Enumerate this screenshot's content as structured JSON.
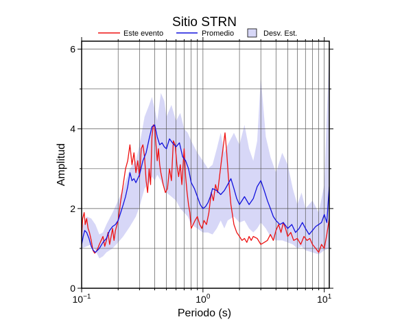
{
  "chart_data": {
    "type": "line",
    "title": "Sitio STRN",
    "xlabel": "Periodo (s)",
    "ylabel": "Amplitud",
    "x_scale": "log",
    "xlim": [
      0.1,
      11
    ],
    "ylim": [
      0,
      6.2
    ],
    "x_ticks": [
      {
        "value": 0.1,
        "base": "10",
        "exp": "−1"
      },
      {
        "value": 1,
        "base": "10",
        "exp": "0"
      },
      {
        "value": 10,
        "base": "10",
        "exp": "1"
      }
    ],
    "y_ticks": [
      0,
      2,
      4,
      6
    ],
    "grid": true,
    "legend_position": "top",
    "legend": [
      {
        "label": "Este evento",
        "kind": "line",
        "color": "#ee1111"
      },
      {
        "label": "Promedio",
        "kind": "line",
        "color": "#1111dd"
      },
      {
        "label": "Desv. Est.",
        "kind": "band",
        "color": "#d7d7f7"
      }
    ],
    "band": {
      "name": "Desv. Est.",
      "color": "#d7d7f7",
      "x": [
        0.1,
        0.11,
        0.12,
        0.13,
        0.14,
        0.15,
        0.16,
        0.18,
        0.2,
        0.22,
        0.25,
        0.28,
        0.3,
        0.33,
        0.36,
        0.38,
        0.4,
        0.42,
        0.45,
        0.48,
        0.5,
        0.55,
        0.6,
        0.65,
        0.7,
        0.75,
        0.8,
        0.9,
        1.0,
        1.1,
        1.2,
        1.3,
        1.4,
        1.5,
        1.6,
        1.8,
        2.0,
        2.2,
        2.4,
        2.6,
        2.8,
        3.0,
        3.3,
        3.6,
        4.0,
        4.5,
        5.0,
        5.5,
        6.0,
        6.5,
        7.0,
        8.0,
        9.0,
        10.0,
        11.0
      ],
      "upper": [
        1.5,
        1.8,
        1.75,
        1.6,
        1.35,
        1.4,
        1.6,
        1.9,
        2.2,
        2.5,
        3.0,
        3.2,
        3.6,
        4.3,
        4.6,
        4.8,
        4.5,
        4.2,
        4.9,
        4.7,
        4.3,
        4.6,
        4.2,
        4.4,
        4.0,
        3.9,
        3.7,
        3.4,
        3.2,
        3.0,
        3.1,
        3.5,
        3.9,
        3.4,
        3.6,
        3.9,
        3.6,
        4.1,
        3.5,
        3.2,
        3.7,
        5.3,
        3.8,
        3.3,
        2.9,
        3.4,
        3.1,
        2.5,
        2.1,
        2.4,
        2.0,
        2.2,
        1.9,
        2.6,
        6.0
      ],
      "lower": [
        1.0,
        1.05,
        1.1,
        0.95,
        0.75,
        0.8,
        0.9,
        1.0,
        1.15,
        1.3,
        1.55,
        1.8,
        2.05,
        2.5,
        2.65,
        2.8,
        2.7,
        2.85,
        2.7,
        2.5,
        2.4,
        2.3,
        2.2,
        2.0,
        1.9,
        1.8,
        1.6,
        1.5,
        1.4,
        1.4,
        1.35,
        1.5,
        1.7,
        1.5,
        1.7,
        1.8,
        1.65,
        1.7,
        1.5,
        1.4,
        1.5,
        1.65,
        1.5,
        1.3,
        1.2,
        1.2,
        1.15,
        1.1,
        1.0,
        1.05,
        0.95,
        0.9,
        0.85,
        0.95,
        1.0
      ]
    },
    "series": [
      {
        "name": "Este evento",
        "color": "#ee1111",
        "x": [
          0.1,
          0.102,
          0.105,
          0.107,
          0.11,
          0.113,
          0.116,
          0.12,
          0.124,
          0.128,
          0.132,
          0.136,
          0.14,
          0.145,
          0.15,
          0.155,
          0.16,
          0.165,
          0.17,
          0.175,
          0.18,
          0.185,
          0.19,
          0.2,
          0.21,
          0.22,
          0.23,
          0.24,
          0.25,
          0.26,
          0.27,
          0.28,
          0.29,
          0.3,
          0.31,
          0.32,
          0.33,
          0.34,
          0.35,
          0.36,
          0.37,
          0.38,
          0.39,
          0.4,
          0.41,
          0.42,
          0.43,
          0.44,
          0.45,
          0.47,
          0.49,
          0.51,
          0.53,
          0.55,
          0.57,
          0.59,
          0.61,
          0.63,
          0.65,
          0.67,
          0.7,
          0.72,
          0.74,
          0.76,
          0.78,
          0.8,
          0.83,
          0.86,
          0.9,
          0.94,
          0.98,
          1.02,
          1.07,
          1.12,
          1.17,
          1.22,
          1.27,
          1.32,
          1.37,
          1.42,
          1.47,
          1.52,
          1.57,
          1.62,
          1.7,
          1.8,
          1.9,
          2.0,
          2.1,
          2.2,
          2.3,
          2.4,
          2.5,
          2.6,
          2.8,
          3.0,
          3.2,
          3.4,
          3.6,
          3.8,
          4.0,
          4.2,
          4.4,
          4.6,
          4.8,
          5.0,
          5.3,
          5.6,
          6.0,
          6.4,
          6.8,
          7.2,
          7.6,
          8.0,
          8.5,
          9.0,
          9.5,
          10.0,
          10.5,
          11.0
        ],
        "values": [
          1.3,
          1.75,
          1.9,
          1.6,
          1.75,
          1.5,
          1.4,
          1.2,
          0.95,
          0.88,
          0.92,
          1.0,
          1.1,
          1.2,
          1.3,
          1.05,
          1.2,
          1.4,
          1.1,
          1.3,
          1.5,
          1.2,
          1.45,
          1.7,
          2.2,
          2.6,
          3.0,
          3.2,
          3.6,
          3.1,
          3.4,
          2.9,
          3.2,
          2.8,
          3.5,
          3.6,
          3.3,
          2.7,
          2.4,
          3.0,
          2.6,
          3.8,
          4.1,
          4.05,
          3.6,
          3.2,
          3.5,
          3.1,
          2.9,
          2.6,
          2.4,
          2.5,
          3.0,
          2.7,
          3.7,
          3.6,
          3.1,
          2.8,
          3.1,
          2.6,
          3.5,
          2.8,
          2.4,
          2.1,
          1.9,
          1.5,
          1.6,
          1.7,
          1.8,
          1.6,
          1.5,
          1.7,
          1.6,
          1.9,
          2.4,
          2.2,
          2.6,
          2.4,
          2.8,
          3.2,
          3.55,
          3.9,
          3.4,
          2.8,
          2.1,
          1.6,
          1.4,
          1.3,
          1.2,
          1.25,
          1.15,
          1.3,
          1.2,
          1.3,
          1.25,
          1.1,
          1.15,
          1.2,
          1.35,
          1.2,
          1.45,
          1.6,
          1.4,
          1.65,
          1.5,
          1.3,
          1.4,
          1.2,
          1.25,
          1.1,
          1.3,
          1.2,
          1.25,
          1.1,
          1.0,
          0.9,
          1.1,
          1.0,
          1.35,
          1.75
        ]
      },
      {
        "name": "Promedio",
        "color": "#1111dd",
        "x": [
          0.1,
          0.103,
          0.106,
          0.11,
          0.115,
          0.12,
          0.125,
          0.13,
          0.135,
          0.14,
          0.15,
          0.16,
          0.17,
          0.18,
          0.19,
          0.2,
          0.21,
          0.22,
          0.23,
          0.24,
          0.25,
          0.26,
          0.27,
          0.28,
          0.3,
          0.32,
          0.34,
          0.36,
          0.38,
          0.4,
          0.42,
          0.44,
          0.46,
          0.48,
          0.5,
          0.53,
          0.56,
          0.6,
          0.64,
          0.68,
          0.72,
          0.76,
          0.8,
          0.85,
          0.9,
          0.95,
          1.0,
          1.05,
          1.1,
          1.15,
          1.2,
          1.3,
          1.4,
          1.5,
          1.6,
          1.7,
          1.8,
          1.9,
          2.0,
          2.2,
          2.4,
          2.6,
          2.8,
          3.0,
          3.2,
          3.4,
          3.6,
          3.8,
          4.0,
          4.3,
          4.6,
          5.0,
          5.4,
          5.8,
          6.2,
          6.6,
          7.0,
          7.5,
          8.0,
          8.5,
          9.0,
          9.5,
          10.0,
          10.5,
          11.0
        ],
        "values": [
          1.1,
          1.3,
          1.45,
          1.4,
          1.25,
          1.05,
          0.95,
          0.9,
          0.95,
          1.0,
          1.15,
          1.25,
          1.45,
          1.55,
          1.6,
          1.7,
          1.9,
          2.1,
          2.3,
          2.55,
          2.9,
          2.7,
          2.75,
          2.65,
          2.85,
          3.2,
          3.4,
          3.75,
          4.05,
          4.1,
          3.8,
          3.6,
          3.65,
          3.55,
          3.5,
          3.75,
          3.65,
          3.55,
          3.65,
          3.3,
          3.2,
          3.0,
          2.65,
          2.5,
          2.3,
          2.1,
          2.0,
          2.05,
          2.15,
          2.3,
          2.5,
          2.45,
          2.35,
          2.45,
          2.6,
          2.75,
          2.5,
          2.25,
          2.1,
          2.3,
          2.1,
          2.25,
          2.55,
          2.7,
          2.45,
          2.2,
          2.0,
          1.8,
          1.7,
          1.6,
          1.65,
          1.5,
          1.6,
          1.4,
          1.5,
          1.65,
          1.5,
          1.35,
          1.45,
          1.55,
          1.6,
          1.65,
          1.85,
          1.65,
          2.55
        ]
      }
    ]
  }
}
